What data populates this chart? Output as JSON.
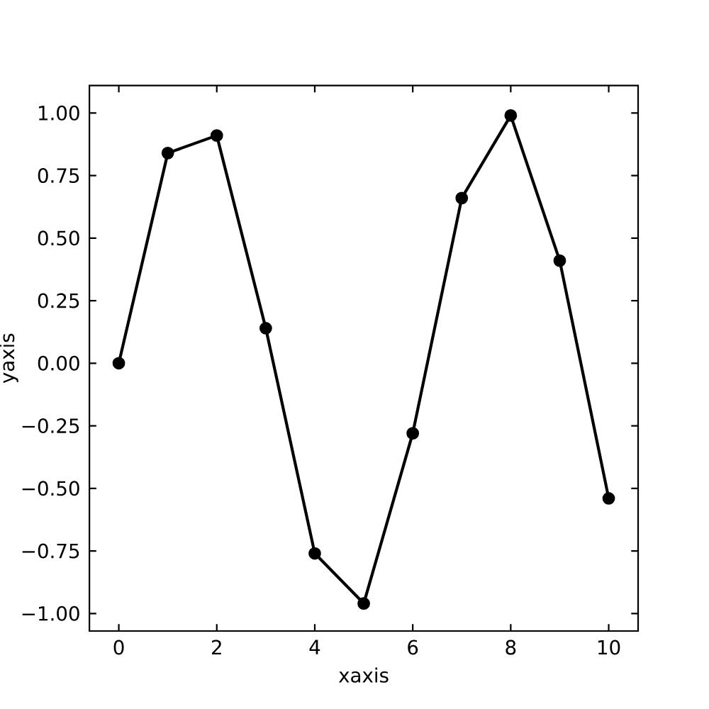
{
  "chart_data": {
    "type": "line",
    "xlabel": "xaxis",
    "ylabel": "yaxis",
    "x": [
      0,
      1,
      2,
      3,
      4,
      5,
      6,
      7,
      8,
      9,
      10
    ],
    "values": [
      0,
      0.84,
      0.91,
      0.14,
      -0.76,
      -0.96,
      -0.28,
      0.66,
      0.99,
      0.41,
      -0.54
    ],
    "color": "#000000",
    "marker": "circle",
    "line_style": "solid",
    "xlim": [
      -0.6,
      10.6
    ],
    "ylim": [
      -1.07,
      1.11
    ],
    "xticks": [
      0,
      2,
      4,
      6,
      8,
      10
    ],
    "yticks": [
      {
        "value": -1,
        "label": "−1.00"
      },
      {
        "value": -0.75,
        "label": "−0.75"
      },
      {
        "value": -0.5,
        "label": "−0.50"
      },
      {
        "value": -0.25,
        "label": "−0.25"
      },
      {
        "value": 0,
        "label": "0.00"
      },
      {
        "value": 0.25,
        "label": "0.25"
      },
      {
        "value": 0.5,
        "label": "0.50"
      },
      {
        "value": 0.75,
        "label": "0.75"
      },
      {
        "value": 1,
        "label": "1.00"
      }
    ],
    "grid": false
  }
}
